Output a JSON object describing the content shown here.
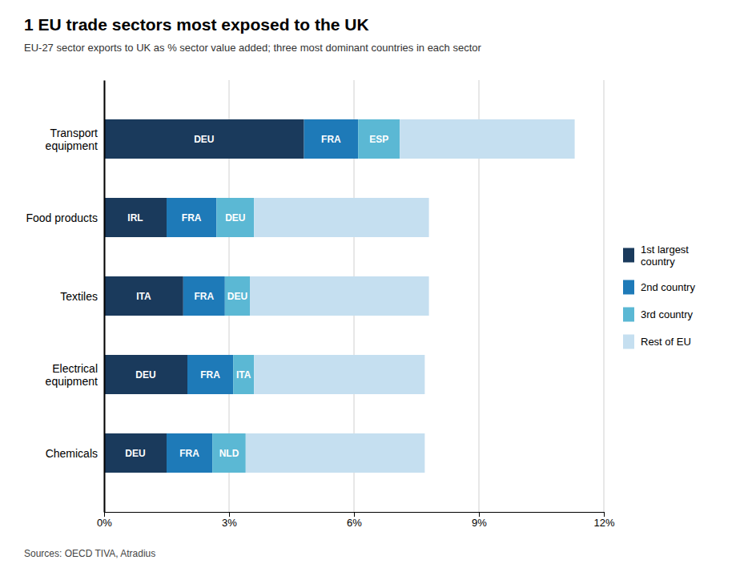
{
  "chart_data": {
    "type": "bar",
    "orientation": "horizontal",
    "stacked": true,
    "title": "1 EU trade sectors most exposed to the UK",
    "subtitle": "EU-27 sector exports to UK as % sector value added; three most dominant countries in each sector",
    "source": "Sources: OECD TIVA, Atradius",
    "categories": [
      "Chemicals",
      "Electrical\nequipment",
      "Textiles",
      "Food products",
      "Transport\nequipment"
    ],
    "series": [
      {
        "name": "1st largest\ncountry",
        "color": "#1a3a5c",
        "values": [
          1.5,
          2.0,
          1.9,
          1.5,
          4.8
        ],
        "labels": [
          "DEU",
          "DEU",
          "ITA",
          "IRL",
          "DEU"
        ]
      },
      {
        "name": "2nd country",
        "color": "#1e7ab8",
        "values": [
          1.1,
          1.1,
          1.0,
          1.2,
          1.3
        ],
        "labels": [
          "FRA",
          "FRA",
          "FRA",
          "FRA",
          "FRA"
        ]
      },
      {
        "name": "3rd country",
        "color": "#5bb8d4",
        "values": [
          0.8,
          0.5,
          0.6,
          0.9,
          1.0
        ],
        "labels": [
          "NLD",
          "ITA",
          "DEU",
          "DEU",
          "ESP"
        ]
      },
      {
        "name": "Rest of EU",
        "color": "#c5dff0",
        "values": [
          4.3,
          4.1,
          4.3,
          4.2,
          4.2
        ]
      }
    ],
    "xlim": [
      0,
      12
    ],
    "xticks": [
      {
        "value": 0,
        "label": "0%"
      },
      {
        "value": 3,
        "label": "3%"
      },
      {
        "value": 6,
        "label": "6%"
      },
      {
        "value": 9,
        "label": "9%"
      },
      {
        "value": 12,
        "label": "12%"
      }
    ],
    "grid": true,
    "legend": "right"
  }
}
